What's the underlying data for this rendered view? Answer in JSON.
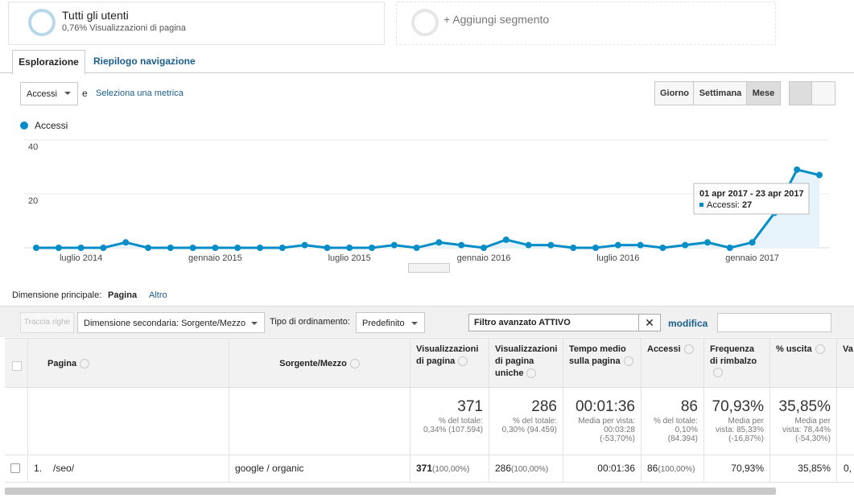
{
  "segments": [
    {
      "name": "Tutti gli utenti",
      "detail": "0,76% Visualizzazioni di pagina"
    },
    {
      "name": "+ Aggiungi segmento"
    }
  ],
  "tabs": [
    "Esplorazione",
    "Riepilogo navigazione"
  ],
  "metric": {
    "selected": "Accessi",
    "joiner": "e",
    "link": "Seleziona una metrica"
  },
  "periods": [
    "Giorno",
    "Settimana",
    "Mese"
  ],
  "chart_data": {
    "type": "line",
    "series": [
      {
        "name": "Accessi",
        "color": "#058dc7",
        "values": [
          0,
          0,
          0,
          0,
          2,
          0,
          0,
          0,
          0,
          0,
          0,
          0,
          1,
          0,
          0,
          0,
          1,
          0,
          2,
          1,
          0,
          3,
          1,
          1,
          0,
          0,
          1,
          1,
          0,
          1,
          2,
          0,
          2,
          13,
          29,
          27
        ]
      }
    ],
    "categories": [
      null,
      null,
      "luglio 2014",
      null,
      null,
      null,
      null,
      null,
      "gennaio 2015",
      null,
      null,
      null,
      null,
      null,
      "luglio 2015",
      null,
      null,
      null,
      null,
      null,
      "gennaio 2016",
      null,
      null,
      null,
      null,
      null,
      "luglio 2016",
      null,
      null,
      null,
      null,
      null,
      "gennaio 2017",
      null,
      null,
      null
    ],
    "ylim": [
      0,
      40
    ],
    "yticks": [
      20,
      40
    ],
    "grid": true,
    "tooltip": {
      "title": "01 apr 2017 - 23 apr 2017",
      "label": "Accessi:"
    }
  },
  "dimension": {
    "label": "Dimensione principale:",
    "selected": "Pagina",
    "other": "Altro"
  },
  "toolbar": {
    "plot_rows": "Traccia righe",
    "secondary": "Dimensione secondaria: Sorgente/Mezzo",
    "sort_label": "Tipo di ordinamento:",
    "sort": "Predefinito",
    "filter": "Filtro avanzato ATTIVO",
    "edit": "modifica"
  },
  "table": {
    "headers": [
      "Pagina",
      "Sorgente/Mezzo",
      "Visualizzazioni di pagina",
      "Visualizzazioni di pagina uniche",
      "Tempo medio sulla pagina",
      "Accessi",
      "Frequenza di rimbalzo",
      "% uscita",
      "Va"
    ],
    "totals": [
      {
        "value": "371",
        "lines": [
          "% del totale:",
          "0,34% (107.594)"
        ]
      },
      {
        "value": "286",
        "lines": [
          "% del totale:",
          "0,30% (94.459)"
        ]
      },
      {
        "value": "00:01:36",
        "lines": [
          "Media per vista:",
          "00:03:28",
          "(-53,70%)"
        ]
      },
      {
        "value": "86",
        "lines": [
          "% del totale:",
          "0,10%",
          "(84.394)"
        ]
      },
      {
        "value": "70,93%",
        "lines": [
          "Media per",
          "vista: 85,33%",
          "(-16,87%)"
        ]
      },
      {
        "value": "35,85%",
        "lines": [
          "Media per",
          "vista: 78,44%",
          "(-54,30%)"
        ]
      }
    ],
    "rows": [
      {
        "index": "1.",
        "page": "/seo/",
        "source": "google / organic",
        "metrics": [
          {
            "value": "371",
            "share": "(100,00%)"
          },
          {
            "value": "286",
            "share": "(100,00%)"
          },
          {
            "value": "00:01:36"
          },
          {
            "value": "86",
            "share": "(100,00%)"
          },
          {
            "value": "70,93%"
          },
          {
            "value": "35,85%"
          },
          {
            "value": "0,"
          }
        ]
      }
    ]
  }
}
